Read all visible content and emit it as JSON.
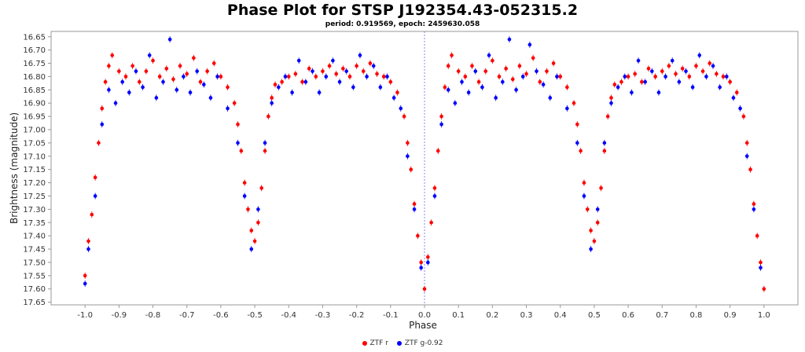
{
  "chart_data": {
    "type": "scatter",
    "title": "Phase Plot for STSP J192354.43-052315.2",
    "subtitle": "period: 0.919569, epoch: 2459630.058",
    "xlabel": "Phase",
    "ylabel": "Brightness (magnitude)",
    "xlim": [
      -1.1,
      1.1
    ],
    "ylim": [
      17.66,
      16.63
    ],
    "y_inverted": true,
    "x_ticks": [
      "-1.0",
      "-0.9",
      "-0.8",
      "-0.7",
      "-0.6",
      "-0.5",
      "-0.4",
      "-0.3",
      "-0.2",
      "-0.1",
      "0.0",
      "0.1",
      "0.2",
      "0.3",
      "0.4",
      "0.5",
      "0.6",
      "0.7",
      "0.8",
      "0.9",
      "1.0"
    ],
    "y_ticks": [
      "16.65",
      "16.70",
      "16.75",
      "16.80",
      "16.85",
      "16.90",
      "16.95",
      "17.00",
      "17.05",
      "17.10",
      "17.15",
      "17.20",
      "17.25",
      "17.30",
      "17.35",
      "17.40",
      "17.45",
      "17.50",
      "17.55",
      "17.60",
      "17.65"
    ],
    "reference_line_x": 0.0,
    "grid": false,
    "legend_position": "bottom-center",
    "series": [
      {
        "name": "ZTF r",
        "color": "#ff0000",
        "points": [
          [
            -1.0,
            17.55
          ],
          [
            -0.99,
            17.42
          ],
          [
            -0.98,
            17.32
          ],
          [
            -0.97,
            17.18
          ],
          [
            -0.96,
            17.05
          ],
          [
            -0.95,
            16.92
          ],
          [
            -0.94,
            16.82
          ],
          [
            -0.93,
            16.76
          ],
          [
            -0.92,
            16.72
          ],
          [
            -0.9,
            16.78
          ],
          [
            -0.88,
            16.8
          ],
          [
            -0.86,
            16.76
          ],
          [
            -0.84,
            16.82
          ],
          [
            -0.82,
            16.78
          ],
          [
            -0.8,
            16.74
          ],
          [
            -0.78,
            16.8
          ],
          [
            -0.76,
            16.77
          ],
          [
            -0.74,
            16.81
          ],
          [
            -0.72,
            16.76
          ],
          [
            -0.7,
            16.79
          ],
          [
            -0.68,
            16.73
          ],
          [
            -0.66,
            16.82
          ],
          [
            -0.64,
            16.78
          ],
          [
            -0.62,
            16.75
          ],
          [
            -0.6,
            16.8
          ],
          [
            -0.58,
            16.84
          ],
          [
            -0.56,
            16.9
          ],
          [
            -0.55,
            16.98
          ],
          [
            -0.54,
            17.08
          ],
          [
            -0.53,
            17.2
          ],
          [
            -0.52,
            17.3
          ],
          [
            -0.51,
            17.38
          ],
          [
            -0.5,
            17.42
          ],
          [
            -0.49,
            17.35
          ],
          [
            -0.48,
            17.22
          ],
          [
            -0.47,
            17.08
          ],
          [
            -0.46,
            16.95
          ],
          [
            -0.45,
            16.88
          ],
          [
            -0.44,
            16.83
          ],
          [
            -0.42,
            16.82
          ],
          [
            -0.4,
            16.8
          ],
          [
            -0.38,
            16.79
          ],
          [
            -0.36,
            16.82
          ],
          [
            -0.34,
            16.77
          ],
          [
            -0.32,
            16.8
          ],
          [
            -0.3,
            16.78
          ],
          [
            -0.28,
            16.76
          ],
          [
            -0.26,
            16.79
          ],
          [
            -0.24,
            16.77
          ],
          [
            -0.22,
            16.8
          ],
          [
            -0.2,
            16.76
          ],
          [
            -0.18,
            16.78
          ],
          [
            -0.16,
            16.75
          ],
          [
            -0.14,
            16.79
          ],
          [
            -0.12,
            16.8
          ],
          [
            -0.1,
            16.82
          ],
          [
            -0.08,
            16.86
          ],
          [
            -0.06,
            16.95
          ],
          [
            -0.05,
            17.05
          ],
          [
            -0.04,
            17.15
          ],
          [
            -0.03,
            17.28
          ],
          [
            -0.02,
            17.4
          ],
          [
            -0.01,
            17.5
          ],
          [
            0.0,
            17.6
          ],
          [
            0.01,
            17.48
          ],
          [
            0.02,
            17.35
          ],
          [
            0.03,
            17.22
          ],
          [
            0.04,
            17.08
          ],
          [
            0.05,
            16.95
          ],
          [
            0.06,
            16.84
          ],
          [
            0.07,
            16.76
          ],
          [
            0.08,
            16.72
          ],
          [
            0.1,
            16.78
          ],
          [
            0.12,
            16.8
          ],
          [
            0.14,
            16.76
          ],
          [
            0.16,
            16.82
          ],
          [
            0.18,
            16.78
          ],
          [
            0.2,
            16.74
          ],
          [
            0.22,
            16.8
          ],
          [
            0.24,
            16.77
          ],
          [
            0.26,
            16.81
          ],
          [
            0.28,
            16.76
          ],
          [
            0.3,
            16.79
          ],
          [
            0.32,
            16.73
          ],
          [
            0.34,
            16.82
          ],
          [
            0.36,
            16.78
          ],
          [
            0.38,
            16.75
          ],
          [
            0.4,
            16.8
          ],
          [
            0.42,
            16.84
          ],
          [
            0.44,
            16.9
          ],
          [
            0.45,
            16.98
          ],
          [
            0.46,
            17.08
          ],
          [
            0.47,
            17.2
          ],
          [
            0.48,
            17.3
          ],
          [
            0.49,
            17.38
          ],
          [
            0.5,
            17.42
          ],
          [
            0.51,
            17.35
          ],
          [
            0.52,
            17.22
          ],
          [
            0.53,
            17.08
          ],
          [
            0.54,
            16.95
          ],
          [
            0.55,
            16.88
          ],
          [
            0.56,
            16.83
          ],
          [
            0.58,
            16.82
          ],
          [
            0.6,
            16.8
          ],
          [
            0.62,
            16.79
          ],
          [
            0.64,
            16.82
          ],
          [
            0.66,
            16.77
          ],
          [
            0.68,
            16.8
          ],
          [
            0.7,
            16.78
          ],
          [
            0.72,
            16.76
          ],
          [
            0.74,
            16.79
          ],
          [
            0.76,
            16.77
          ],
          [
            0.78,
            16.8
          ],
          [
            0.8,
            16.76
          ],
          [
            0.82,
            16.78
          ],
          [
            0.84,
            16.75
          ],
          [
            0.86,
            16.79
          ],
          [
            0.88,
            16.8
          ],
          [
            0.9,
            16.82
          ],
          [
            0.92,
            16.86
          ],
          [
            0.94,
            16.95
          ],
          [
            0.95,
            17.05
          ],
          [
            0.96,
            17.15
          ],
          [
            0.97,
            17.28
          ],
          [
            0.98,
            17.4
          ],
          [
            0.99,
            17.5
          ],
          [
            1.0,
            17.6
          ]
        ]
      },
      {
        "name": "ZTF g-0.92",
        "color": "#0000ff",
        "points": [
          [
            -1.0,
            17.58
          ],
          [
            -0.99,
            17.45
          ],
          [
            -0.97,
            17.25
          ],
          [
            -0.95,
            16.98
          ],
          [
            -0.93,
            16.85
          ],
          [
            -0.91,
            16.9
          ],
          [
            -0.89,
            16.82
          ],
          [
            -0.87,
            16.86
          ],
          [
            -0.85,
            16.78
          ],
          [
            -0.83,
            16.84
          ],
          [
            -0.81,
            16.72
          ],
          [
            -0.79,
            16.88
          ],
          [
            -0.77,
            16.82
          ],
          [
            -0.75,
            16.66
          ],
          [
            -0.73,
            16.85
          ],
          [
            -0.71,
            16.8
          ],
          [
            -0.69,
            16.86
          ],
          [
            -0.67,
            16.78
          ],
          [
            -0.65,
            16.83
          ],
          [
            -0.63,
            16.88
          ],
          [
            -0.61,
            16.8
          ],
          [
            -0.58,
            16.92
          ],
          [
            -0.55,
            17.05
          ],
          [
            -0.53,
            17.25
          ],
          [
            -0.51,
            17.45
          ],
          [
            -0.49,
            17.3
          ],
          [
            -0.47,
            17.05
          ],
          [
            -0.45,
            16.9
          ],
          [
            -0.43,
            16.84
          ],
          [
            -0.41,
            16.8
          ],
          [
            -0.39,
            16.86
          ],
          [
            -0.37,
            16.74
          ],
          [
            -0.35,
            16.82
          ],
          [
            -0.33,
            16.78
          ],
          [
            -0.31,
            16.86
          ],
          [
            -0.29,
            16.8
          ],
          [
            -0.27,
            16.74
          ],
          [
            -0.25,
            16.82
          ],
          [
            -0.23,
            16.78
          ],
          [
            -0.21,
            16.84
          ],
          [
            -0.19,
            16.72
          ],
          [
            -0.17,
            16.8
          ],
          [
            -0.15,
            16.76
          ],
          [
            -0.13,
            16.84
          ],
          [
            -0.11,
            16.8
          ],
          [
            -0.09,
            16.88
          ],
          [
            -0.07,
            16.92
          ],
          [
            -0.05,
            17.1
          ],
          [
            -0.03,
            17.3
          ],
          [
            -0.01,
            17.52
          ],
          [
            0.01,
            17.5
          ],
          [
            0.03,
            17.25
          ],
          [
            0.05,
            16.98
          ],
          [
            0.07,
            16.85
          ],
          [
            0.09,
            16.9
          ],
          [
            0.11,
            16.82
          ],
          [
            0.13,
            16.86
          ],
          [
            0.15,
            16.78
          ],
          [
            0.17,
            16.84
          ],
          [
            0.19,
            16.72
          ],
          [
            0.21,
            16.88
          ],
          [
            0.23,
            16.82
          ],
          [
            0.25,
            16.66
          ],
          [
            0.27,
            16.85
          ],
          [
            0.29,
            16.8
          ],
          [
            0.31,
            16.68
          ],
          [
            0.33,
            16.78
          ],
          [
            0.35,
            16.83
          ],
          [
            0.37,
            16.88
          ],
          [
            0.39,
            16.8
          ],
          [
            0.42,
            16.92
          ],
          [
            0.45,
            17.05
          ],
          [
            0.47,
            17.25
          ],
          [
            0.49,
            17.45
          ],
          [
            0.51,
            17.3
          ],
          [
            0.53,
            17.05
          ],
          [
            0.55,
            16.9
          ],
          [
            0.57,
            16.84
          ],
          [
            0.59,
            16.8
          ],
          [
            0.61,
            16.86
          ],
          [
            0.63,
            16.74
          ],
          [
            0.65,
            16.82
          ],
          [
            0.67,
            16.78
          ],
          [
            0.69,
            16.86
          ],
          [
            0.71,
            16.8
          ],
          [
            0.73,
            16.74
          ],
          [
            0.75,
            16.82
          ],
          [
            0.77,
            16.78
          ],
          [
            0.79,
            16.84
          ],
          [
            0.81,
            16.72
          ],
          [
            0.83,
            16.8
          ],
          [
            0.85,
            16.76
          ],
          [
            0.87,
            16.84
          ],
          [
            0.89,
            16.8
          ],
          [
            0.91,
            16.88
          ],
          [
            0.93,
            16.92
          ],
          [
            0.95,
            17.1
          ],
          [
            0.97,
            17.3
          ],
          [
            0.99,
            17.52
          ]
        ]
      }
    ]
  }
}
